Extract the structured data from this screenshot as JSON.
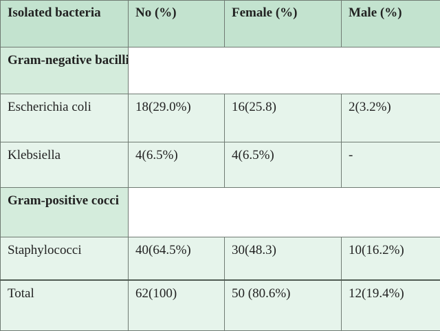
{
  "table": {
    "headers": [
      "Isolated bacteria",
      "No (%)",
      "Female (%)",
      "Male (%)"
    ],
    "sections": [
      {
        "label": "Gram-negative bacilli",
        "rows": [
          {
            "name": "Escherichia coli",
            "no": "18(29.0%)",
            "female": "16(25.8)",
            "male": "2(3.2%)"
          },
          {
            "name": "Klebsiella",
            "no": "4(6.5%)",
            "female": "4(6.5%)",
            "male": "-"
          }
        ]
      },
      {
        "label": "Gram-positive cocci",
        "rows": [
          {
            "name": "Staphylococci",
            "no": "40(64.5%)",
            "female": "30(48.3)",
            "male": "10(16.2%)"
          }
        ]
      }
    ],
    "total": {
      "name": "Total",
      "no": "62(100)",
      "female": "50 (80.6%)",
      "male": "12(19.4%)"
    }
  }
}
